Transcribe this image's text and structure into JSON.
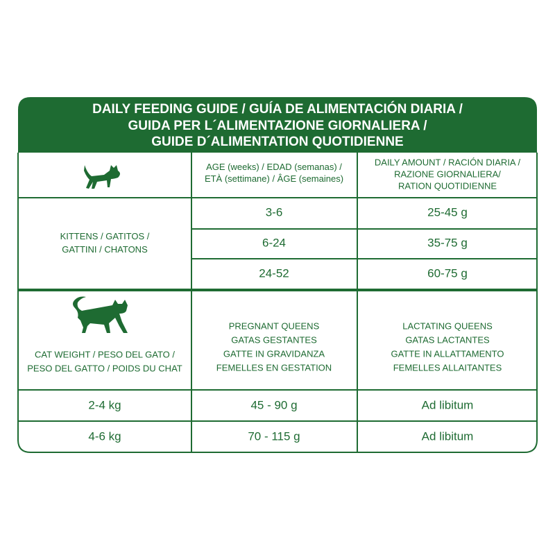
{
  "header": {
    "title_lines": [
      "DAILY FEEDING GUIDE / GUÍA DE ALIMENTACIÓN DIARIA /",
      "GUIDA PER L´ALIMENTAZIONE GIORNALIERA /",
      "GUIDE D´ALIMENTATION QUOTIDIENNE"
    ]
  },
  "kitten_table": {
    "age_header": [
      "AGE (weeks) / EDAD (semanas) /",
      "ETÀ (settimane) / ÂGE (semaines)"
    ],
    "amount_header": [
      "DAILY AMOUNT / RACIÓN DIARIA /",
      "RAZIONE GIORNALIERA/",
      "RATION QUOTIDIENNE"
    ],
    "label": [
      "KITTENS / GATITOS /",
      "GATTINI / CHATONS"
    ],
    "rows": [
      [
        "3-6",
        "25-45 g"
      ],
      [
        "6-24",
        "35-75 g"
      ],
      [
        "24-52",
        "60-75 g"
      ]
    ]
  },
  "adult_table": {
    "weight_header": [
      "CAT WEIGHT / PESO DEL GATO /",
      "PESO DEL GATTO / POIDS DU CHAT"
    ],
    "pregnant_header": [
      "PREGNANT QUEENS",
      "GATAS GESTANTES",
      "GATTE IN GRAVIDANZA",
      "FEMELLES EN GESTATION"
    ],
    "lactating_header": [
      "LACTATING QUEENS",
      "GATAS LACTANTES",
      "GATTE IN ALLATTAMENTO",
      "FEMELLES ALLAITANTES"
    ],
    "rows": [
      [
        "2-4 kg",
        "45 - 90 g",
        "Ad libitum"
      ],
      [
        "4-6 kg",
        "70 - 115 g",
        "Ad libitum"
      ]
    ]
  }
}
